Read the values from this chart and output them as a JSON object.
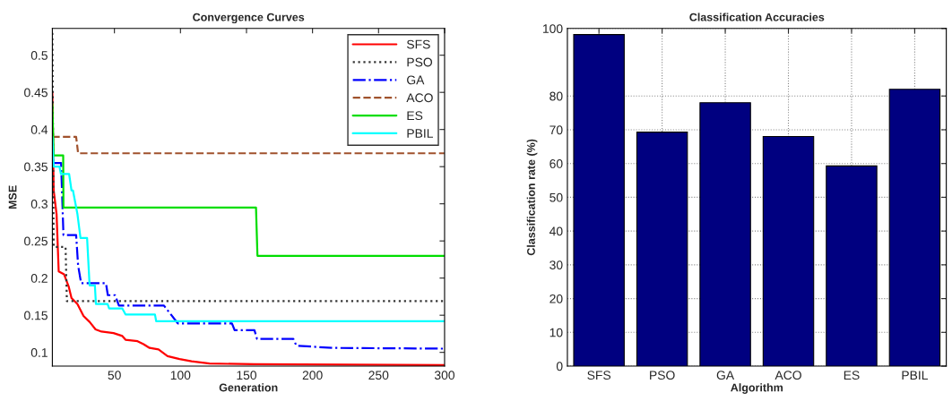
{
  "chart_data": [
    {
      "type": "line",
      "title": "Convergence Curves",
      "xlabel": "Generation",
      "ylabel": "MSE",
      "xlim": [
        3,
        300
      ],
      "ylim": [
        0.0815,
        0.536
      ],
      "xticks": [
        50,
        100,
        150,
        200,
        250,
        300
      ],
      "yticks": [
        0.1,
        0.15,
        0.2,
        0.25,
        0.3,
        0.35,
        0.4,
        0.45,
        0.5
      ],
      "legend": "top right",
      "grid": false,
      "series": [
        {
          "name": "SFS",
          "color": "#ff0000",
          "line_style": "solid",
          "x": [
            3,
            4,
            6.2,
            7.8,
            11.9,
            15.3,
            17.5,
            22,
            26.6,
            31.2,
            35.7,
            40.2,
            49.3,
            56,
            58.4,
            67.5,
            72,
            76.6,
            83.4,
            90.2,
            99.3,
            108.4,
            122,
            156,
            300
          ],
          "values": [
            0.45,
            0.318,
            0.286,
            0.209,
            0.205,
            0.189,
            0.173,
            0.165,
            0.149,
            0.141,
            0.131,
            0.128,
            0.126,
            0.122,
            0.117,
            0.115,
            0.111,
            0.106,
            0.104,
            0.095,
            0.091,
            0.088,
            0.085,
            0.084,
            0.083
          ]
        },
        {
          "name": "PSO",
          "color": "#333333",
          "line_style": "dotted",
          "x": [
            3,
            4,
            13,
            14,
            300
          ],
          "values": [
            0.53,
            0.242,
            0.242,
            0.169,
            0.169
          ]
        },
        {
          "name": "GA",
          "color": "#0000ff",
          "line_style": "dashdot",
          "x": [
            3,
            9.6,
            11.4,
            21,
            22.5,
            24.8,
            43.6,
            45,
            50.5,
            53.4,
            87.5,
            98,
            139,
            141,
            156,
            158,
            185.5,
            187.8,
            215,
            300
          ],
          "values": [
            0.355,
            0.355,
            0.258,
            0.258,
            0.217,
            0.193,
            0.193,
            0.177,
            0.177,
            0.163,
            0.163,
            0.139,
            0.139,
            0.13,
            0.13,
            0.118,
            0.118,
            0.109,
            0.106,
            0.105
          ]
        },
        {
          "name": "ACO",
          "color": "#a0522d",
          "line_style": "dashed",
          "x": [
            3,
            21,
            22.5,
            300
          ],
          "values": [
            0.39,
            0.39,
            0.368,
            0.368
          ]
        },
        {
          "name": "ES",
          "color": "#00dd00",
          "line_style": "solid",
          "x": [
            3,
            4,
            11.2,
            11.4,
            157.2,
            158.3,
            300
          ],
          "values": [
            0.434,
            0.365,
            0.365,
            0.295,
            0.295,
            0.23,
            0.23
          ]
        },
        {
          "name": "PBIL",
          "color": "#00ffff",
          "line_style": "solid",
          "x": [
            3,
            4,
            8.4,
            9.5,
            15.7,
            17.5,
            18.6,
            22,
            24.3,
            29.3,
            31.2,
            35.2,
            36,
            44.8,
            46,
            56,
            58.4,
            80.7,
            81.6,
            300
          ],
          "values": [
            0.39,
            0.35,
            0.35,
            0.34,
            0.34,
            0.318,
            0.318,
            0.286,
            0.254,
            0.254,
            0.19,
            0.19,
            0.165,
            0.165,
            0.159,
            0.159,
            0.151,
            0.151,
            0.142,
            0.142
          ]
        }
      ]
    },
    {
      "type": "bar",
      "title": "Classification Accuracies",
      "xlabel": "Algorithm",
      "ylabel": "Classification rate (%)",
      "categories": [
        "SFS",
        "PSO",
        "GA",
        "ACO",
        "ES",
        "PBIL"
      ],
      "values": [
        98.2,
        69.3,
        78,
        68,
        59.3,
        82
      ],
      "color": "#000080",
      "ylim": [
        0,
        100
      ],
      "yticks": [
        0,
        10,
        20,
        30,
        40,
        50,
        60,
        70,
        80,
        100
      ],
      "grid": true,
      "legend": false
    }
  ]
}
